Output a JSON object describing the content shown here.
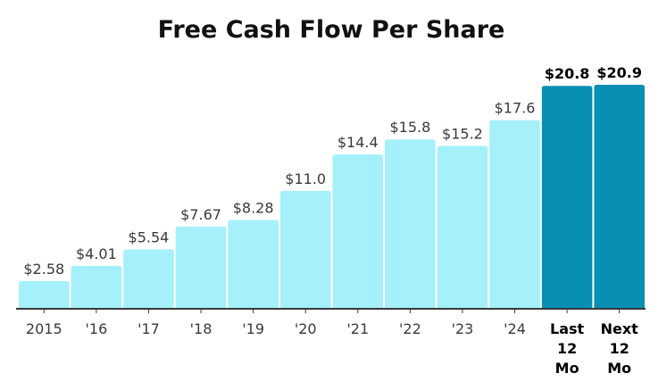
{
  "chart_data": {
    "type": "bar",
    "title": "Free Cash Flow Per Share",
    "xlabel": "",
    "ylabel": "",
    "categories": [
      "2015",
      "'16",
      "'17",
      "'18",
      "'19",
      "'20",
      "'21",
      "'22",
      "'23",
      "'24",
      "Last 12 Mo",
      "Next 12 Mo"
    ],
    "values": [
      2.58,
      4.01,
      5.54,
      7.67,
      8.28,
      11.0,
      14.4,
      15.8,
      15.2,
      17.6,
      20.8,
      20.9
    ],
    "value_labels": [
      "$2.58",
      "$4.01",
      "$5.54",
      "$7.67",
      "$8.28",
      "$11.0",
      "$14.4",
      "$15.8",
      "$15.2",
      "$17.6",
      "$20.8",
      "$20.9"
    ],
    "highlighted": [
      false,
      false,
      false,
      false,
      false,
      false,
      false,
      false,
      false,
      false,
      true,
      true
    ],
    "ylim": [
      0,
      21.5
    ],
    "grid": false,
    "legend": "none",
    "colors": {
      "bar": "#a5f0fa",
      "bar_highlight": "#0a8fb4",
      "axis": "#3a3a3a",
      "text": "#3a3a3a",
      "title": "#111111"
    }
  }
}
